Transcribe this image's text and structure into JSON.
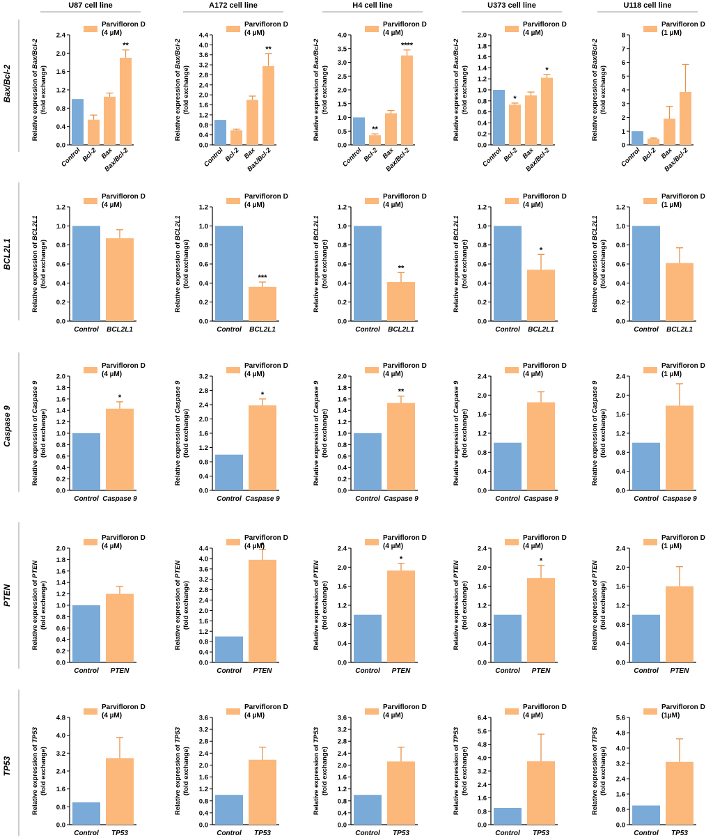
{
  "figure": {
    "columns": [
      "U87 cell line",
      "A172 cell line",
      "H4 cell line",
      "U373 cell line",
      "U118 cell line"
    ],
    "rows": [
      "Bax/Bcl-2",
      "BCL2L1",
      "Caspase 9",
      "PTEN",
      "TP53"
    ],
    "ylabel_prefix": "Relative expression of",
    "ylabel_suffix": "(fold exchange)",
    "colors": {
      "control": "#7aaad8",
      "treated": "#fcb87a",
      "line": "#000000"
    }
  },
  "chart_data": [
    {
      "type": "bar",
      "row": 0,
      "col": 0,
      "gene": "Bax/Bcl-2",
      "categories": [
        "Control",
        "Bcl-2",
        "Bax",
        "Bax/Bcl-2"
      ],
      "values": [
        1.0,
        0.55,
        1.05,
        1.9
      ],
      "errors": [
        0,
        0.1,
        0.08,
        0.17
      ],
      "sig": [
        "",
        "",
        "",
        "**"
      ],
      "ylim": [
        0,
        2.4
      ],
      "yticks": [
        "0.0",
        "0.4",
        "0.8",
        "1.2",
        "1.6",
        "2.0",
        "2.4"
      ],
      "legend": [
        "Parvifloron D",
        "(4 µM)"
      ]
    },
    {
      "type": "bar",
      "row": 0,
      "col": 1,
      "gene": "Bax/Bcl-2",
      "categories": [
        "Control",
        "Bcl-2",
        "Bax",
        "Bax/Bcl-2"
      ],
      "values": [
        1.0,
        0.58,
        1.8,
        3.15
      ],
      "errors": [
        0,
        0.05,
        0.15,
        0.5
      ],
      "sig": [
        "",
        "",
        "",
        "**"
      ],
      "ylim": [
        0,
        4.4
      ],
      "yticks": [
        "0.0",
        "0.4",
        "0.8",
        "1.2",
        "1.6",
        "2.0",
        "2.4",
        "2.8",
        "3.2",
        "3.6",
        "4.0",
        "4.4"
      ],
      "legend": [
        "Parvifloron D",
        "(4 µM)"
      ]
    },
    {
      "type": "bar",
      "row": 0,
      "col": 2,
      "gene": "Bax/Bcl-2",
      "categories": [
        "Control",
        "Bcl-2",
        "Bax",
        "Bax/Bcl-2"
      ],
      "values": [
        1.0,
        0.35,
        1.15,
        3.25
      ],
      "errors": [
        0,
        0.05,
        0.1,
        0.2
      ],
      "sig": [
        "",
        "**",
        "",
        "****"
      ],
      "ylim": [
        0,
        4.0
      ],
      "yticks": [
        "0.0",
        "0.5",
        "1.0",
        "1.5",
        "2.0",
        "2.5",
        "3.0",
        "3.5",
        "4.0"
      ],
      "legend": [
        "Parvifloron D",
        "(4 µM)"
      ]
    },
    {
      "type": "bar",
      "row": 0,
      "col": 3,
      "gene": "Bax/Bcl-2",
      "categories": [
        "Control",
        "Bcl-2",
        "Bax",
        "Bax/Bcl-2"
      ],
      "values": [
        1.0,
        0.73,
        0.9,
        1.22
      ],
      "errors": [
        0,
        0.03,
        0.06,
        0.06
      ],
      "sig": [
        "",
        "*",
        "",
        "*"
      ],
      "ylim": [
        0,
        2.0
      ],
      "yticks": [
        "0.0",
        "0.2",
        "0.4",
        "0.6",
        "0.8",
        "1.0",
        "1.2",
        "1.4",
        "1.6",
        "1.8",
        "2.0"
      ],
      "legend": [
        "Parvifloron D",
        "(4 µM)"
      ]
    },
    {
      "type": "bar",
      "row": 0,
      "col": 4,
      "gene": "Bax/Bcl-2",
      "categories": [
        "Control",
        "Bcl-2",
        "Bax",
        "Bax/Bcl-2"
      ],
      "values": [
        1.0,
        0.45,
        1.9,
        3.85
      ],
      "errors": [
        0,
        0.05,
        0.9,
        2.0
      ],
      "sig": [
        "",
        "",
        "",
        ""
      ],
      "ylim": [
        0,
        8
      ],
      "yticks": [
        "0",
        "1",
        "2",
        "3",
        "4",
        "5",
        "6",
        "7",
        "8"
      ],
      "legend": [
        "Parvifloron D",
        "(1 µM)"
      ]
    },
    {
      "type": "bar",
      "row": 1,
      "col": 0,
      "gene": "BCL2L1",
      "categories": [
        "Control",
        "BCL2L1"
      ],
      "values": [
        1.0,
        0.87
      ],
      "errors": [
        0,
        0.09
      ],
      "sig": [
        "",
        ""
      ],
      "ylim": [
        0,
        1.2
      ],
      "yticks": [
        "0.0",
        "0.2",
        "0.4",
        "0.6",
        "0.8",
        "1.0",
        "1.2"
      ],
      "legend": [
        "Parvifloron D",
        "(4 µM)"
      ]
    },
    {
      "type": "bar",
      "row": 1,
      "col": 1,
      "gene": "BCL2L1",
      "categories": [
        "Control",
        "BCL2L1"
      ],
      "values": [
        1.0,
        0.36
      ],
      "errors": [
        0,
        0.05
      ],
      "sig": [
        "",
        "***"
      ],
      "ylim": [
        0,
        1.2
      ],
      "yticks": [
        "0.0",
        "0.2",
        "0.4",
        "0.6",
        "0.8",
        "1.0",
        "1.2"
      ],
      "legend": [
        "Parvifloron D",
        "(4 µM)"
      ]
    },
    {
      "type": "bar",
      "row": 1,
      "col": 2,
      "gene": "BCL2L1",
      "categories": [
        "Control",
        "BCL2L1"
      ],
      "values": [
        1.0,
        0.41
      ],
      "errors": [
        0,
        0.1
      ],
      "sig": [
        "",
        "**"
      ],
      "ylim": [
        0,
        1.2
      ],
      "yticks": [
        "0.0",
        "0.2",
        "0.4",
        "0.6",
        "0.8",
        "1.0",
        "1.2"
      ],
      "legend": [
        "Parvifloron D",
        "(4 µM)"
      ]
    },
    {
      "type": "bar",
      "row": 1,
      "col": 3,
      "gene": "BCL2L1",
      "categories": [
        "Control",
        "BCL2L1"
      ],
      "values": [
        1.0,
        0.54
      ],
      "errors": [
        0,
        0.16
      ],
      "sig": [
        "",
        "*"
      ],
      "ylim": [
        0,
        1.2
      ],
      "yticks": [
        "0.0",
        "0.2",
        "0.4",
        "0.6",
        "0.8",
        "1.0",
        "1.2"
      ],
      "legend": [
        "Parvifloron D",
        "(4 µM)"
      ]
    },
    {
      "type": "bar",
      "row": 1,
      "col": 4,
      "gene": "BCL2L1",
      "categories": [
        "Control",
        "BCL2L1"
      ],
      "values": [
        1.0,
        0.61
      ],
      "errors": [
        0,
        0.16
      ],
      "sig": [
        "",
        ""
      ],
      "ylim": [
        0,
        1.2
      ],
      "yticks": [
        "0.0",
        "0.2",
        "0.4",
        "0.6",
        "0.8",
        "1.0",
        "1.2"
      ],
      "legend": [
        "Parvifloron D",
        "(1 µM)"
      ]
    },
    {
      "type": "bar",
      "row": 2,
      "col": 0,
      "gene": "Caspase 9",
      "categories": [
        "Control",
        "Caspase 9"
      ],
      "values": [
        1.0,
        1.43
      ],
      "errors": [
        0,
        0.12
      ],
      "sig": [
        "",
        "*"
      ],
      "ylim": [
        0,
        2.0
      ],
      "yticks": [
        "0.0",
        "0.2",
        "0.4",
        "0.6",
        "0.8",
        "1.0",
        "1.2",
        "1.4",
        "1.6",
        "1.8",
        "2.0"
      ],
      "legend": [
        "Parvifloron D",
        "(4 µM)"
      ]
    },
    {
      "type": "bar",
      "row": 2,
      "col": 1,
      "gene": "Caspase 9",
      "categories": [
        "Control",
        "Caspase 9"
      ],
      "values": [
        1.0,
        2.38
      ],
      "errors": [
        0,
        0.18
      ],
      "sig": [
        "",
        "*"
      ],
      "ylim": [
        0,
        3.2
      ],
      "yticks": [
        "0.0",
        "0.4",
        "0.8",
        "1.2",
        "1.6",
        "2.0",
        "2.4",
        "2.8",
        "3.2"
      ],
      "legend": [
        "Parvifloron D",
        "(4 µM)"
      ]
    },
    {
      "type": "bar",
      "row": 2,
      "col": 2,
      "gene": "Caspase 9",
      "categories": [
        "Control",
        "Caspase 9"
      ],
      "values": [
        1.0,
        1.53
      ],
      "errors": [
        0,
        0.12
      ],
      "sig": [
        "",
        "**"
      ],
      "ylim": [
        0,
        2.0
      ],
      "yticks": [
        "0.0",
        "0.2",
        "0.4",
        "0.6",
        "0.8",
        "1.0",
        "1.2",
        "1.4",
        "1.6",
        "1.8",
        "2.0"
      ],
      "legend": [
        "Parvifloron D",
        "(4 µM)"
      ]
    },
    {
      "type": "bar",
      "row": 2,
      "col": 3,
      "gene": "Caspase 9",
      "categories": [
        "Control",
        "Caspase 9"
      ],
      "values": [
        1.0,
        1.85
      ],
      "errors": [
        0,
        0.22
      ],
      "sig": [
        "",
        ""
      ],
      "ylim": [
        0,
        2.4
      ],
      "yticks": [
        "0.0",
        "0.4",
        "0.8",
        "1.2",
        "1.6",
        "2.0",
        "2.4"
      ],
      "legend": [
        "Parvifloron D",
        "(4 µM)"
      ]
    },
    {
      "type": "bar",
      "row": 2,
      "col": 4,
      "gene": "Caspase 9",
      "categories": [
        "Control",
        "Caspase 9"
      ],
      "values": [
        1.0,
        1.78
      ],
      "errors": [
        0,
        0.46
      ],
      "sig": [
        "",
        ""
      ],
      "ylim": [
        0,
        2.4
      ],
      "yticks": [
        "0.0",
        "0.4",
        "0.8",
        "1.2",
        "1.6",
        "2.0",
        "2.4"
      ],
      "legend": [
        "Parvifloron D",
        "(1 µM)"
      ]
    },
    {
      "type": "bar",
      "row": 3,
      "col": 0,
      "gene": "PTEN",
      "categories": [
        "Control",
        "PTEN"
      ],
      "values": [
        1.0,
        1.2
      ],
      "errors": [
        0,
        0.13
      ],
      "sig": [
        "",
        ""
      ],
      "ylim": [
        0,
        2.0
      ],
      "yticks": [
        "0.0",
        "0.2",
        "0.4",
        "0.6",
        "0.8",
        "1.0",
        "1.2",
        "1.4",
        "1.6",
        "1.8",
        "2.0"
      ],
      "legend": [
        "Parvifloron D",
        "(4 µM)"
      ]
    },
    {
      "type": "bar",
      "row": 3,
      "col": 1,
      "gene": "PTEN",
      "categories": [
        "Control",
        "PTEN"
      ],
      "values": [
        1.0,
        3.95
      ],
      "errors": [
        0,
        0.4
      ],
      "sig": [
        "",
        "*"
      ],
      "ylim": [
        0,
        4.4
      ],
      "yticks": [
        "0.0",
        "0.4",
        "0.8",
        "1.2",
        "1.6",
        "2.0",
        "2.4",
        "2.8",
        "3.2",
        "3.6",
        "4.0",
        "4.4"
      ],
      "legend": [
        "Parvifloron D",
        "(4 µM)"
      ]
    },
    {
      "type": "bar",
      "row": 3,
      "col": 2,
      "gene": "PTEN",
      "categories": [
        "Control",
        "PTEN"
      ],
      "values": [
        1.0,
        1.93
      ],
      "errors": [
        0,
        0.15
      ],
      "sig": [
        "",
        "*"
      ],
      "ylim": [
        0,
        2.4
      ],
      "yticks": [
        "0.0",
        "0.4",
        "0.8",
        "1.2",
        "1.6",
        "2.0",
        "2.4"
      ],
      "legend": [
        "Parvifloron D",
        "(4 µM)"
      ]
    },
    {
      "type": "bar",
      "row": 3,
      "col": 3,
      "gene": "PTEN",
      "categories": [
        "Control",
        "PTEN"
      ],
      "values": [
        1.0,
        1.77
      ],
      "errors": [
        0,
        0.27
      ],
      "sig": [
        "",
        "*"
      ],
      "ylim": [
        0,
        2.4
      ],
      "yticks": [
        "0.0",
        "0.4",
        "0.8",
        "1.2",
        "1.6",
        "2.0",
        "2.4"
      ],
      "legend": [
        "Parvifloron D",
        "(4 µM)"
      ]
    },
    {
      "type": "bar",
      "row": 3,
      "col": 4,
      "gene": "PTEN",
      "categories": [
        "Control",
        "PTEN"
      ],
      "values": [
        1.0,
        1.6
      ],
      "errors": [
        0,
        0.41
      ],
      "sig": [
        "",
        ""
      ],
      "ylim": [
        0,
        2.4
      ],
      "yticks": [
        "0.0",
        "0.4",
        "0.8",
        "1.2",
        "1.6",
        "2.0",
        "2.4"
      ],
      "legend": [
        "Parvifloron D",
        "(1 µM)"
      ]
    },
    {
      "type": "bar",
      "row": 4,
      "col": 0,
      "gene": "TP53",
      "categories": [
        "Control",
        "TP53"
      ],
      "values": [
        1.0,
        2.98
      ],
      "errors": [
        0,
        0.92
      ],
      "sig": [
        "",
        ""
      ],
      "ylim": [
        0,
        4.8
      ],
      "yticks": [
        "0.0",
        "0.8",
        "1.6",
        "2.4",
        "3.2",
        "4.0",
        "4.8"
      ],
      "legend": [
        "Parvifloron D",
        "(4 µM)"
      ]
    },
    {
      "type": "bar",
      "row": 4,
      "col": 1,
      "gene": "TP53",
      "categories": [
        "Control",
        "TP53"
      ],
      "values": [
        1.0,
        2.18
      ],
      "errors": [
        0,
        0.42
      ],
      "sig": [
        "",
        ""
      ],
      "ylim": [
        0,
        3.6
      ],
      "yticks": [
        "0.0",
        "0.4",
        "0.8",
        "1.2",
        "1.6",
        "2.0",
        "2.4",
        "2.8",
        "3.2",
        "3.6"
      ],
      "legend": [
        "Parvifloron D",
        "(4 µM)"
      ]
    },
    {
      "type": "bar",
      "row": 4,
      "col": 2,
      "gene": "TP53",
      "categories": [
        "Control",
        "TP53"
      ],
      "values": [
        1.0,
        2.12
      ],
      "errors": [
        0,
        0.48
      ],
      "sig": [
        "",
        ""
      ],
      "ylim": [
        0,
        3.6
      ],
      "yticks": [
        "0.0",
        "0.4",
        "0.8",
        "1.2",
        "1.6",
        "2.0",
        "2.4",
        "2.8",
        "3.2",
        "3.6"
      ],
      "legend": [
        "Parvifloron D",
        "(4 µM)"
      ]
    },
    {
      "type": "bar",
      "row": 4,
      "col": 3,
      "gene": "TP53",
      "categories": [
        "Control",
        "TP53"
      ],
      "values": [
        1.0,
        3.78
      ],
      "errors": [
        0,
        1.62
      ],
      "sig": [
        "",
        ""
      ],
      "ylim": [
        0,
        6.4
      ],
      "yticks": [
        "0.0",
        "0.8",
        "1.6",
        "2.4",
        "3.2",
        "4.0",
        "4.8",
        "5.6",
        "6.4"
      ],
      "legend": [
        "Parvifloron D",
        "(4 µM)"
      ]
    },
    {
      "type": "bar",
      "row": 4,
      "col": 4,
      "gene": "TP53",
      "categories": [
        "Control",
        "TP53"
      ],
      "values": [
        1.0,
        3.28
      ],
      "errors": [
        0,
        1.2
      ],
      "sig": [
        "",
        ""
      ],
      "ylim": [
        0,
        5.6
      ],
      "yticks": [
        "0.0",
        "0.8",
        "1.6",
        "2.4",
        "3.2",
        "4.0",
        "4.8",
        "5.6"
      ],
      "legend": [
        "Parvifloron D",
        "(1µM)"
      ]
    }
  ]
}
